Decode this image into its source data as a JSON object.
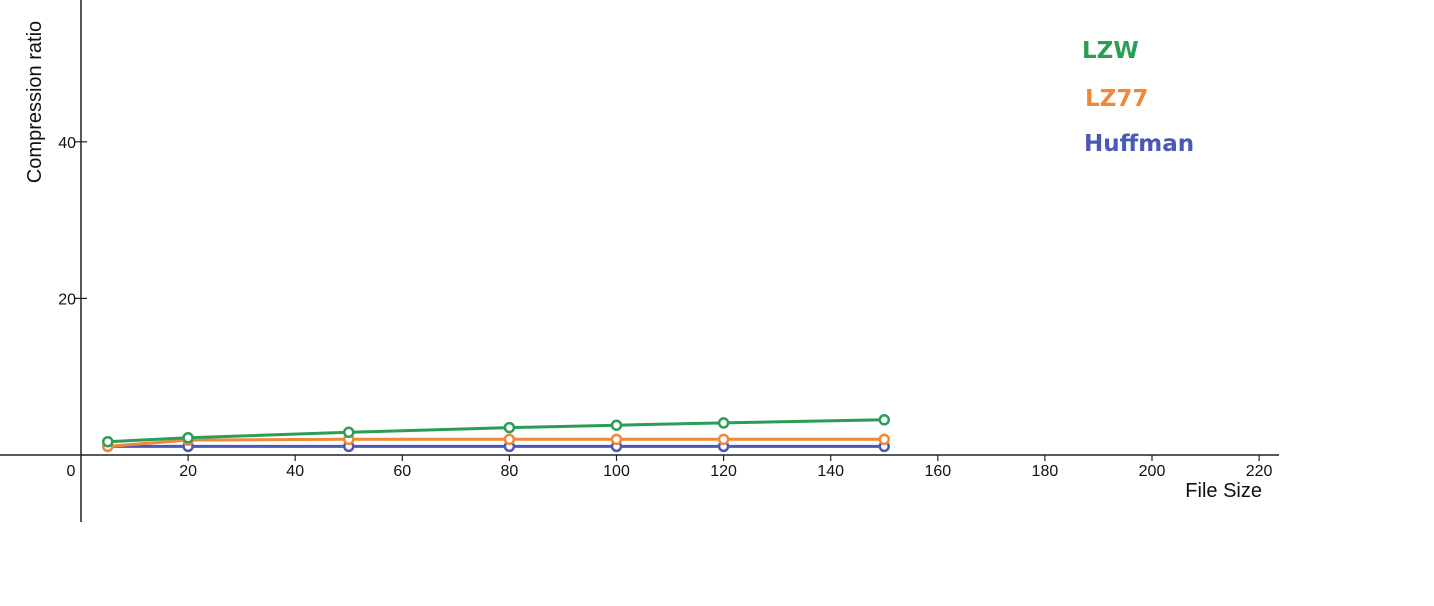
{
  "chart_data": {
    "type": "line",
    "xlabel": "File Size",
    "ylabel": "Compression ratio",
    "xlim": [
      -15,
      225
    ],
    "ylim": [
      -8.7,
      58
    ],
    "x_ticks": [
      0,
      20,
      40,
      60,
      80,
      100,
      120,
      140,
      160,
      180,
      200,
      220
    ],
    "y_ticks": [
      20,
      40
    ],
    "origin_label": "0",
    "grid": false,
    "legend_position": "top-right",
    "series": [
      {
        "name": "LZW",
        "color": "#2a9d57",
        "x": [
          5,
          20,
          50,
          80,
          100,
          120,
          150
        ],
        "y": [
          1.7,
          2.2,
          2.9,
          3.5,
          3.8,
          4.1,
          4.5
        ]
      },
      {
        "name": "LZ77",
        "color": "#f0883a",
        "x": [
          5,
          20,
          50,
          80,
          100,
          120,
          150
        ],
        "y": [
          1.1,
          1.9,
          2.0,
          2.0,
          2.0,
          2.0,
          2.0
        ]
      },
      {
        "name": "Huffman",
        "color": "#4a59b5",
        "x": [
          5,
          20,
          50,
          80,
          100,
          120,
          150
        ],
        "y": [
          1.1,
          1.1,
          1.1,
          1.1,
          1.1,
          1.1,
          1.1
        ]
      }
    ]
  }
}
